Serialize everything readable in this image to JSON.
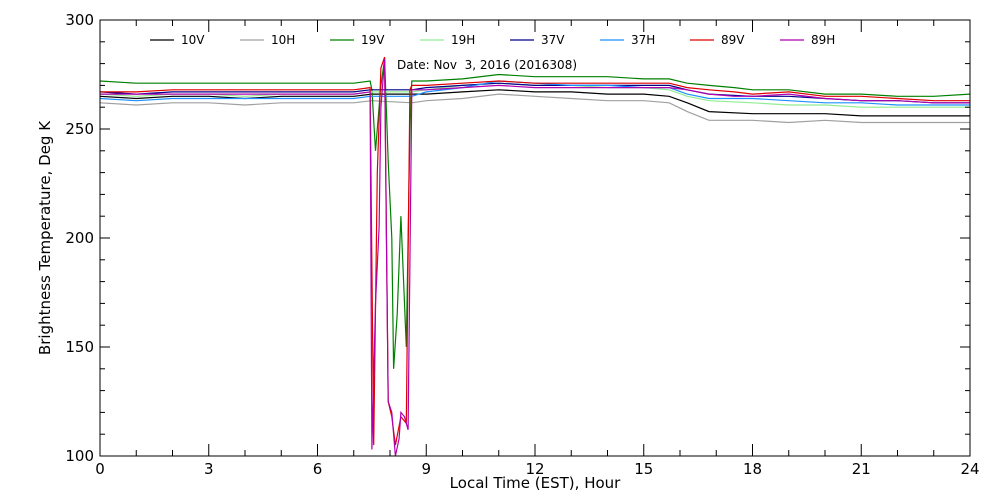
{
  "chart_data": {
    "type": "line",
    "title": "",
    "xlabel": "Local Time (EST), Hour",
    "ylabel": "Brightness Temperature, Deg K",
    "xlim": [
      0,
      24
    ],
    "ylim": [
      100,
      300
    ],
    "xticks": [
      0,
      3,
      6,
      9,
      12,
      15,
      18,
      21,
      24
    ],
    "yticks": [
      100,
      150,
      200,
      250,
      300
    ],
    "grid": false,
    "legend_position": "top",
    "annotation": "Date: Nov  3, 2016 (2016308)",
    "series": [
      {
        "name": "10V",
        "color": "#000000",
        "points": [
          [
            0,
            265
          ],
          [
            1,
            264
          ],
          [
            2,
            265
          ],
          [
            3,
            265
          ],
          [
            4,
            264
          ],
          [
            5,
            265
          ],
          [
            6,
            265
          ],
          [
            7,
            265
          ],
          [
            7.5,
            266
          ],
          [
            8.6,
            266
          ],
          [
            9,
            266
          ],
          [
            10,
            267
          ],
          [
            11,
            268
          ],
          [
            12,
            267
          ],
          [
            13,
            267
          ],
          [
            14,
            266
          ],
          [
            15,
            266
          ],
          [
            15.7,
            265
          ],
          [
            16.2,
            262
          ],
          [
            16.8,
            258
          ],
          [
            18,
            257
          ],
          [
            19,
            257
          ],
          [
            20,
            257
          ],
          [
            21,
            256
          ],
          [
            22,
            256
          ],
          [
            23,
            256
          ],
          [
            24,
            256
          ]
        ]
      },
      {
        "name": "10H",
        "color": "#a0a0a0",
        "points": [
          [
            0,
            262
          ],
          [
            1,
            261
          ],
          [
            2,
            262
          ],
          [
            3,
            262
          ],
          [
            4,
            261
          ],
          [
            5,
            262
          ],
          [
            6,
            262
          ],
          [
            7,
            262
          ],
          [
            7.5,
            263
          ],
          [
            8.6,
            262
          ],
          [
            9,
            263
          ],
          [
            10,
            264
          ],
          [
            11,
            266
          ],
          [
            12,
            265
          ],
          [
            13,
            264
          ],
          [
            14,
            263
          ],
          [
            15,
            263
          ],
          [
            15.7,
            262
          ],
          [
            16.2,
            258
          ],
          [
            16.8,
            254
          ],
          [
            18,
            254
          ],
          [
            19,
            253
          ],
          [
            20,
            254
          ],
          [
            21,
            253
          ],
          [
            22,
            253
          ],
          [
            23,
            253
          ],
          [
            24,
            253
          ]
        ]
      },
      {
        "name": "19V",
        "color": "#008000",
        "points": [
          [
            0,
            272
          ],
          [
            1,
            271
          ],
          [
            2,
            271
          ],
          [
            3,
            271
          ],
          [
            4,
            271
          ],
          [
            5,
            271
          ],
          [
            6,
            271
          ],
          [
            7,
            271
          ],
          [
            7.45,
            272
          ],
          [
            7.5,
            268
          ],
          [
            7.6,
            240
          ],
          [
            7.75,
            270
          ],
          [
            7.85,
            282
          ],
          [
            7.95,
            235
          ],
          [
            8.05,
            200
          ],
          [
            8.1,
            140
          ],
          [
            8.2,
            165
          ],
          [
            8.3,
            210
          ],
          [
            8.45,
            150
          ],
          [
            8.55,
            250
          ],
          [
            8.6,
            272
          ],
          [
            9,
            272
          ],
          [
            10,
            273
          ],
          [
            11,
            275
          ],
          [
            12,
            274
          ],
          [
            13,
            274
          ],
          [
            14,
            274
          ],
          [
            15,
            273
          ],
          [
            15.7,
            273
          ],
          [
            16.2,
            271
          ],
          [
            16.8,
            270
          ],
          [
            17.5,
            269
          ],
          [
            18,
            268
          ],
          [
            19,
            268
          ],
          [
            20,
            266
          ],
          [
            21,
            266
          ],
          [
            22,
            265
          ],
          [
            23,
            265
          ],
          [
            24,
            266
          ]
        ]
      },
      {
        "name": "19H",
        "color": "#90ee90",
        "points": [
          [
            0,
            266
          ],
          [
            1,
            265
          ],
          [
            2,
            266
          ],
          [
            3,
            266
          ],
          [
            4,
            265
          ],
          [
            5,
            266
          ],
          [
            6,
            266
          ],
          [
            7,
            266
          ],
          [
            7.45,
            267
          ],
          [
            8.6,
            267
          ],
          [
            9,
            268
          ],
          [
            10,
            270
          ],
          [
            11,
            271
          ],
          [
            12,
            270
          ],
          [
            13,
            270
          ],
          [
            14,
            269
          ],
          [
            15,
            269
          ],
          [
            15.7,
            268
          ],
          [
            16.2,
            265
          ],
          [
            16.8,
            263
          ],
          [
            18,
            262
          ],
          [
            19,
            261
          ],
          [
            20,
            261
          ],
          [
            21,
            260
          ],
          [
            22,
            260
          ],
          [
            23,
            260
          ],
          [
            24,
            260
          ]
        ]
      },
      {
        "name": "37V",
        "color": "#00008b",
        "points": [
          [
            0,
            267
          ],
          [
            1,
            266
          ],
          [
            2,
            267
          ],
          [
            3,
            267
          ],
          [
            4,
            267
          ],
          [
            5,
            267
          ],
          [
            6,
            267
          ],
          [
            7,
            267
          ],
          [
            7.45,
            268
          ],
          [
            8.6,
            268
          ],
          [
            9,
            269
          ],
          [
            10,
            270
          ],
          [
            11,
            271
          ],
          [
            12,
            270
          ],
          [
            13,
            270
          ],
          [
            14,
            270
          ],
          [
            15,
            270
          ],
          [
            15.7,
            270
          ],
          [
            16.2,
            268
          ],
          [
            16.8,
            266
          ],
          [
            18,
            265
          ],
          [
            19,
            265
          ],
          [
            20,
            264
          ],
          [
            21,
            263
          ],
          [
            22,
            263
          ],
          [
            23,
            262
          ],
          [
            24,
            262
          ]
        ]
      },
      {
        "name": "37H",
        "color": "#1e90ff",
        "points": [
          [
            0,
            264
          ],
          [
            1,
            263
          ],
          [
            2,
            264
          ],
          [
            3,
            264
          ],
          [
            4,
            264
          ],
          [
            5,
            264
          ],
          [
            6,
            264
          ],
          [
            7,
            264
          ],
          [
            7.45,
            265
          ],
          [
            8.6,
            265
          ],
          [
            9,
            267
          ],
          [
            10,
            269
          ],
          [
            11,
            272
          ],
          [
            12,
            271
          ],
          [
            13,
            270
          ],
          [
            14,
            270
          ],
          [
            15,
            269
          ],
          [
            15.7,
            269
          ],
          [
            16.2,
            266
          ],
          [
            16.8,
            264
          ],
          [
            18,
            264
          ],
          [
            19,
            263
          ],
          [
            20,
            262
          ],
          [
            21,
            262
          ],
          [
            22,
            261
          ],
          [
            23,
            261
          ],
          [
            24,
            261
          ]
        ]
      },
      {
        "name": "89V",
        "color": "#e00000",
        "points": [
          [
            0,
            267
          ],
          [
            1,
            267
          ],
          [
            2,
            268
          ],
          [
            3,
            268
          ],
          [
            4,
            268
          ],
          [
            5,
            268
          ],
          [
            6,
            268
          ],
          [
            7,
            268
          ],
          [
            7.45,
            269
          ],
          [
            7.55,
            105
          ],
          [
            7.65,
            230
          ],
          [
            7.75,
            278
          ],
          [
            7.85,
            283
          ],
          [
            7.95,
            125
          ],
          [
            8.05,
            118
          ],
          [
            8.15,
            105
          ],
          [
            8.3,
            118
          ],
          [
            8.45,
            115
          ],
          [
            8.55,
            268
          ],
          [
            8.6,
            270
          ],
          [
            9,
            270
          ],
          [
            10,
            271
          ],
          [
            11,
            272
          ],
          [
            12,
            271
          ],
          [
            13,
            271
          ],
          [
            14,
            271
          ],
          [
            15,
            271
          ],
          [
            15.7,
            271
          ],
          [
            16.2,
            269
          ],
          [
            16.8,
            268
          ],
          [
            17.5,
            267
          ],
          [
            18,
            266
          ],
          [
            19,
            267
          ],
          [
            20,
            265
          ],
          [
            21,
            265
          ],
          [
            22,
            264
          ],
          [
            23,
            263
          ],
          [
            24,
            263
          ]
        ]
      },
      {
        "name": "89H",
        "color": "#b000b0",
        "points": [
          [
            0,
            266
          ],
          [
            1,
            266
          ],
          [
            2,
            266
          ],
          [
            3,
            266
          ],
          [
            4,
            266
          ],
          [
            5,
            266
          ],
          [
            6,
            266
          ],
          [
            7,
            266
          ],
          [
            7.45,
            267
          ],
          [
            7.5,
            103
          ],
          [
            7.6,
            170
          ],
          [
            7.7,
            205
          ],
          [
            7.75,
            260
          ],
          [
            7.85,
            282
          ],
          [
            7.9,
            200
          ],
          [
            7.95,
            125
          ],
          [
            8.05,
            120
          ],
          [
            8.15,
            100
          ],
          [
            8.25,
            108
          ],
          [
            8.3,
            120
          ],
          [
            8.4,
            118
          ],
          [
            8.5,
            112
          ],
          [
            8.6,
            268
          ],
          [
            9,
            268
          ],
          [
            10,
            269
          ],
          [
            11,
            270
          ],
          [
            12,
            269
          ],
          [
            13,
            269
          ],
          [
            14,
            269
          ],
          [
            15,
            269
          ],
          [
            15.7,
            269
          ],
          [
            16.2,
            268
          ],
          [
            16.8,
            266
          ],
          [
            17.5,
            265
          ],
          [
            18,
            265
          ],
          [
            19,
            266
          ],
          [
            20,
            264
          ],
          [
            21,
            263
          ],
          [
            22,
            263
          ],
          [
            23,
            262
          ],
          [
            24,
            262
          ]
        ]
      }
    ]
  }
}
